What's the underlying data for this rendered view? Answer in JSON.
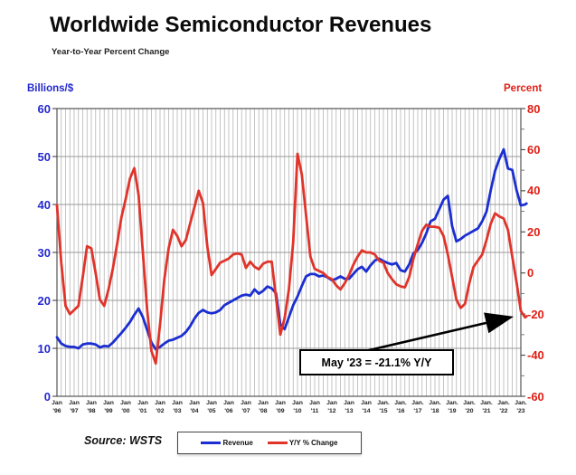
{
  "header": {
    "title": "Worldwide Semiconductor Revenues",
    "subtitle": "Year-to-Year Percent Change"
  },
  "axes": {
    "left_title": "Billions/$",
    "right_title": "Percent",
    "left_tick_labels": [
      "0",
      "10",
      "20",
      "30",
      "40",
      "50",
      "60"
    ],
    "right_tick_labels": [
      "-60",
      "-40",
      "-20",
      "0",
      "20",
      "40",
      "60",
      "80"
    ],
    "x_labels": [
      {
        "m": "Jan",
        "y": "'96"
      },
      {
        "m": "Jan",
        "y": "'97"
      },
      {
        "m": "Jan",
        "y": "'98"
      },
      {
        "m": "Jan",
        "y": "'99"
      },
      {
        "m": "Jan",
        "y": "'00"
      },
      {
        "m": "Jan",
        "y": "'01"
      },
      {
        "m": "Jan",
        "y": "'02"
      },
      {
        "m": "Jan",
        "y": "'03"
      },
      {
        "m": "Jan",
        "y": "'04"
      },
      {
        "m": "Jan",
        "y": "'05"
      },
      {
        "m": "Jan",
        "y": "'06"
      },
      {
        "m": "Jan",
        "y": "'07"
      },
      {
        "m": "Jan",
        "y": "'08"
      },
      {
        "m": "Jan",
        "y": "'09"
      },
      {
        "m": "Jan",
        "y": "'10"
      },
      {
        "m": "Jan",
        "y": "'11"
      },
      {
        "m": "Jan",
        "y": "'12"
      },
      {
        "m": "Jan",
        "y": "'13"
      },
      {
        "m": "Jan",
        "y": "'14"
      },
      {
        "m": "Jan.",
        "y": "'15"
      },
      {
        "m": "Jan.",
        "y": "'16"
      },
      {
        "m": "Jan.",
        "y": "'17"
      },
      {
        "m": "Jan.",
        "y": "'18"
      },
      {
        "m": "Jan.",
        "y": "'19"
      },
      {
        "m": "Jan.",
        "y": "'20"
      },
      {
        "m": "Jan.",
        "y": "'21"
      },
      {
        "m": "Jan.",
        "y": "'22"
      },
      {
        "m": "Jan.",
        "y": "'23"
      }
    ]
  },
  "legend": {
    "items": [
      {
        "label": "Revenue",
        "color": "#1b2ed1"
      },
      {
        "label": "Y/Y % Change",
        "color": "#e0342b"
      }
    ]
  },
  "annotation": {
    "text": "May '23 = -21.1% Y/Y"
  },
  "source": "Source: WSTS",
  "colors": {
    "revenue_line": "#1b2ed1",
    "yoy_line": "#e0342b",
    "left_axis_text": "#2328cc",
    "right_axis_text": "#e01e14",
    "grid": "#b5b5b5",
    "frame": "#555555",
    "arrow": "#000000"
  },
  "chart_data": {
    "type": "line",
    "title": "Worldwide Semiconductor Revenues",
    "subtitle": "Year-to-Year Percent Change",
    "source": "WSTS",
    "x_unit": "decimal_year_quarterly",
    "x_range": [
      1996.0,
      2023.33
    ],
    "grid": {
      "vertical_every_years": 0.25,
      "horizontal_every_left_units": 10
    },
    "left_axis": {
      "label": "Billions/$",
      "range": [
        0,
        60
      ],
      "ticks": [
        0,
        10,
        20,
        30,
        40,
        50,
        60
      ]
    },
    "right_axis": {
      "label": "Percent",
      "range": [
        -60,
        80
      ],
      "ticks": [
        -60,
        -40,
        -20,
        0,
        20,
        40,
        60,
        80
      ],
      "minor_ticks": [
        -50,
        -30,
        -10,
        10,
        30,
        50,
        70
      ]
    },
    "legend_position": "bottom-center",
    "annotation": {
      "text": "May '23 = -21.1% Y/Y",
      "points_to": {
        "x": 2023.33,
        "series": "Y/Y % Change",
        "value_pct": -21.1
      }
    },
    "x": [
      1996.0,
      1996.25,
      1996.5,
      1996.75,
      1997.0,
      1997.25,
      1997.5,
      1997.75,
      1998.0,
      1998.25,
      1998.5,
      1998.75,
      1999.0,
      1999.25,
      1999.5,
      1999.75,
      2000.0,
      2000.25,
      2000.5,
      2000.75,
      2001.0,
      2001.25,
      2001.5,
      2001.75,
      2002.0,
      2002.25,
      2002.5,
      2002.75,
      2003.0,
      2003.25,
      2003.5,
      2003.75,
      2004.0,
      2004.25,
      2004.5,
      2004.75,
      2005.0,
      2005.25,
      2005.5,
      2005.75,
      2006.0,
      2006.25,
      2006.5,
      2006.75,
      2007.0,
      2007.25,
      2007.5,
      2007.75,
      2008.0,
      2008.25,
      2008.5,
      2008.75,
      2009.0,
      2009.25,
      2009.5,
      2009.75,
      2010.0,
      2010.25,
      2010.5,
      2010.75,
      2011.0,
      2011.25,
      2011.5,
      2011.75,
      2012.0,
      2012.25,
      2012.5,
      2012.75,
      2013.0,
      2013.25,
      2013.5,
      2013.75,
      2014.0,
      2014.25,
      2014.5,
      2014.75,
      2015.0,
      2015.25,
      2015.5,
      2015.75,
      2016.0,
      2016.25,
      2016.5,
      2016.75,
      2017.0,
      2017.25,
      2017.5,
      2017.75,
      2018.0,
      2018.25,
      2018.5,
      2018.75,
      2019.0,
      2019.25,
      2019.5,
      2019.75,
      2020.0,
      2020.25,
      2020.5,
      2020.75,
      2021.0,
      2021.25,
      2021.5,
      2021.75,
      2022.0,
      2022.25,
      2022.5,
      2022.75,
      2023.0,
      2023.25,
      2023.33
    ],
    "series": [
      {
        "name": "Revenue",
        "axis": "left",
        "units": "billions_usd_per_month",
        "color": "#1b2ed1",
        "values": [
          12.3,
          11.0,
          10.5,
          10.3,
          10.3,
          10.0,
          10.8,
          11.0,
          11.0,
          10.8,
          10.2,
          10.5,
          10.4,
          11.2,
          12.2,
          13.2,
          14.3,
          15.5,
          17.0,
          18.3,
          16.5,
          13.8,
          11.2,
          9.8,
          10.3,
          11.0,
          11.6,
          11.8,
          12.2,
          12.6,
          13.4,
          14.6,
          16.2,
          17.4,
          18.0,
          17.5,
          17.3,
          17.5,
          18.0,
          19.0,
          19.5,
          20.0,
          20.5,
          21.0,
          21.2,
          21.0,
          22.3,
          21.4,
          22.0,
          22.9,
          22.5,
          21.5,
          15.0,
          14.0,
          16.5,
          19.0,
          20.8,
          23.0,
          25.0,
          25.5,
          25.5,
          25.0,
          25.2,
          24.8,
          24.2,
          24.5,
          25.0,
          24.5,
          24.5,
          25.5,
          26.5,
          27.0,
          26.0,
          27.3,
          28.3,
          28.7,
          28.2,
          27.8,
          27.5,
          27.8,
          26.3,
          26.0,
          27.5,
          29.8,
          30.5,
          32.0,
          34.0,
          36.5,
          37.0,
          39.0,
          41.0,
          41.8,
          35.5,
          32.3,
          32.8,
          33.5,
          34.0,
          34.5,
          35.0,
          36.5,
          38.5,
          43.0,
          47.0,
          49.5,
          51.5,
          47.5,
          47.2,
          43.0,
          39.8,
          40.0,
          40.2
        ]
      },
      {
        "name": "Y/Y % Change",
        "axis": "right",
        "units": "percent",
        "color": "#e0342b",
        "values": [
          33,
          5,
          -16,
          -20,
          -18,
          -16,
          -2,
          13,
          12,
          0,
          -13,
          -16,
          -8,
          2,
          14,
          27,
          36,
          46,
          51,
          38,
          10,
          -18,
          -38,
          -44,
          -25,
          -3,
          12,
          21,
          18,
          13,
          16,
          24,
          32,
          40,
          34,
          13,
          -1,
          2,
          5,
          6,
          7,
          9,
          9.5,
          9,
          2.5,
          5.5,
          3,
          1.8,
          4.5,
          5.5,
          5.5,
          -12,
          -30,
          -22,
          -8,
          15,
          58,
          48,
          28,
          8,
          2,
          1,
          0,
          -2,
          -3,
          -6,
          -8,
          -5,
          -1,
          4,
          8,
          11,
          10,
          10,
          9,
          6,
          5,
          0,
          -3,
          -5.5,
          -6.5,
          -7,
          -2,
          7,
          14,
          20.5,
          23.5,
          22.5,
          22.5,
          22,
          18,
          9,
          -2,
          -13,
          -17,
          -15,
          -5,
          3,
          6,
          9,
          16,
          24,
          29,
          27.5,
          26.5,
          21,
          8,
          -4.5,
          -18.5,
          -21.6,
          -21.1
        ]
      }
    ]
  }
}
